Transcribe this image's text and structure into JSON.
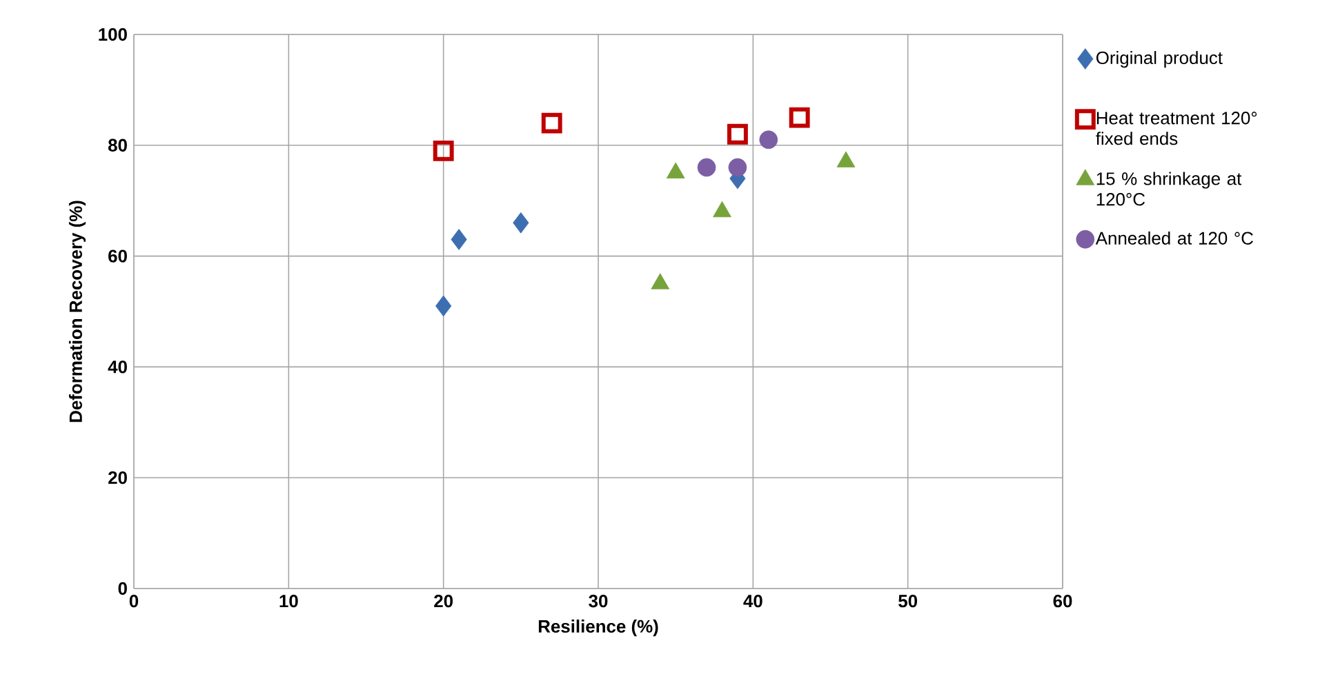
{
  "chart_data": {
    "type": "scatter",
    "xlabel": "Resilience (%)",
    "ylabel": "Deformation Recovery (%)",
    "xlim": [
      0,
      60
    ],
    "xticks": [
      0,
      10,
      20,
      30,
      40,
      50,
      60
    ],
    "ylim": [
      0,
      100
    ],
    "yticks": [
      0,
      20,
      40,
      60,
      80,
      100
    ],
    "grid": true,
    "legend": "right",
    "series": [
      {
        "name": "Original product",
        "color": "#3d6fb0",
        "marker": "diamond",
        "x": [
          20,
          21,
          25,
          39
        ],
        "values": [
          51,
          63,
          66,
          74
        ]
      },
      {
        "name": "Heat treatment 120° fixed ends",
        "color": "#c00000",
        "marker": "square",
        "x": [
          20,
          27,
          39,
          43
        ],
        "values": [
          79,
          84,
          82,
          85
        ]
      },
      {
        "name": "15 % shrinkage at 120°C",
        "color": "#77a33b",
        "marker": "triangle",
        "x": [
          34,
          35,
          38,
          46
        ],
        "values": [
          55,
          75,
          68,
          77
        ]
      },
      {
        "name": "Annealed at 120 °C",
        "color": "#7b5ea3",
        "marker": "circle",
        "x": [
          37,
          39,
          41
        ],
        "values": [
          76,
          76,
          81
        ]
      }
    ]
  }
}
